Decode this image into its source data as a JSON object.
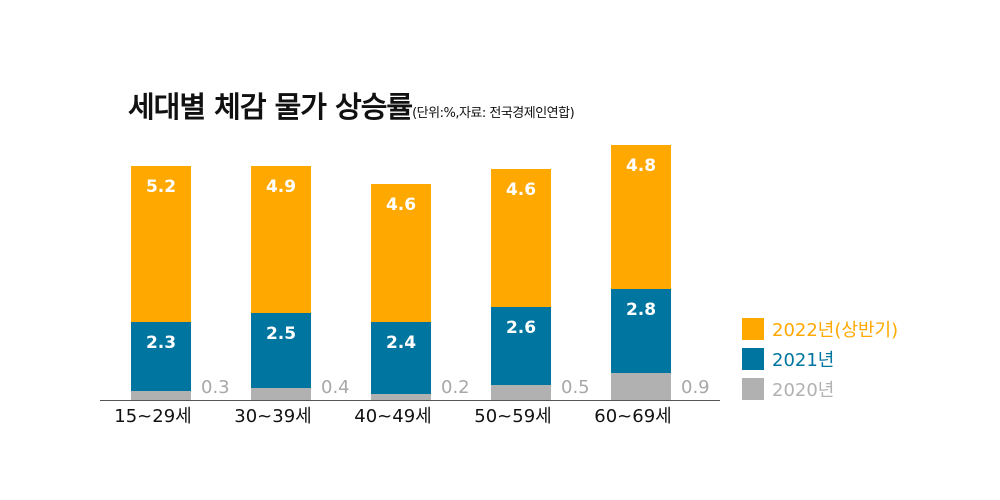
{
  "chart_data": {
    "type": "bar",
    "stacked": true,
    "title": "세대별 체감 물가 상승률",
    "subtitle": "(단위:%,자료: 전국경제인연합)",
    "categories": [
      "15~29세",
      "30~39세",
      "40~49세",
      "50~59세",
      "60~69세"
    ],
    "series": [
      {
        "name": "2020년",
        "color": "#B1B1B1",
        "values": [
          0.3,
          0.4,
          0.2,
          0.5,
          0.9
        ]
      },
      {
        "name": "2021년",
        "color": "#00759F",
        "values": [
          2.3,
          2.5,
          2.4,
          2.6,
          2.8
        ]
      },
      {
        "name": "2022년(상반기)",
        "color": "#FFA800",
        "values": [
          5.2,
          4.9,
          4.6,
          4.6,
          4.8
        ]
      }
    ],
    "legend_placement": "right",
    "legend_order": [
      "2022년(상반기)",
      "2021년",
      "2020년"
    ],
    "grid": false,
    "ylim": [
      0,
      8.5
    ]
  }
}
